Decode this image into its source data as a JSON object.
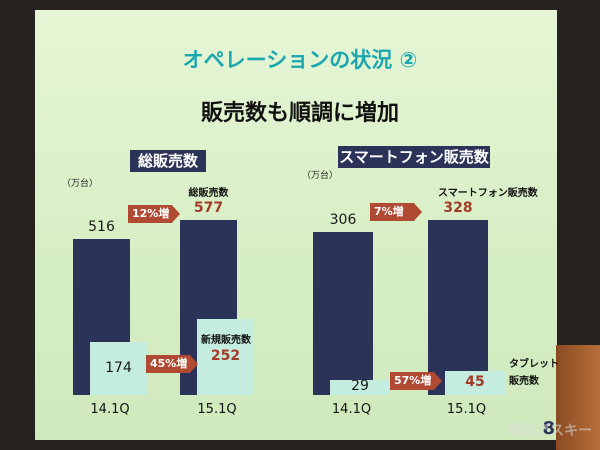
{
  "slide": {
    "title": "オペレーションの状況 ②",
    "subtitle": "販売数も順調に増加",
    "page": "8",
    "watermark": "週刊アスキー"
  },
  "chart_data": [
    {
      "type": "bar",
      "title": "総販売数",
      "unit": "（万台）",
      "categories": [
        "14.1Q",
        "15.1Q"
      ],
      "series": [
        {
          "name": "総販売数",
          "color": "#2c3358",
          "values": [
            516,
            577
          ]
        },
        {
          "name": "新規販売数",
          "color": "#c4ecdf",
          "values": [
            174,
            252
          ]
        }
      ],
      "growth_labels": [
        "12%増",
        "45%増"
      ]
    },
    {
      "type": "bar",
      "title": "スマートフォン販売数",
      "unit": "（万台）",
      "categories": [
        "14.1Q",
        "15.1Q"
      ],
      "series": [
        {
          "name": "スマートフォン販売数",
          "color": "#2c3358",
          "values": [
            306,
            328
          ]
        },
        {
          "name": "タブレット販売数",
          "color": "#c4ecdf",
          "values": [
            29,
            45
          ]
        }
      ],
      "growth_labels": [
        "7%増",
        "57%増"
      ]
    }
  ]
}
